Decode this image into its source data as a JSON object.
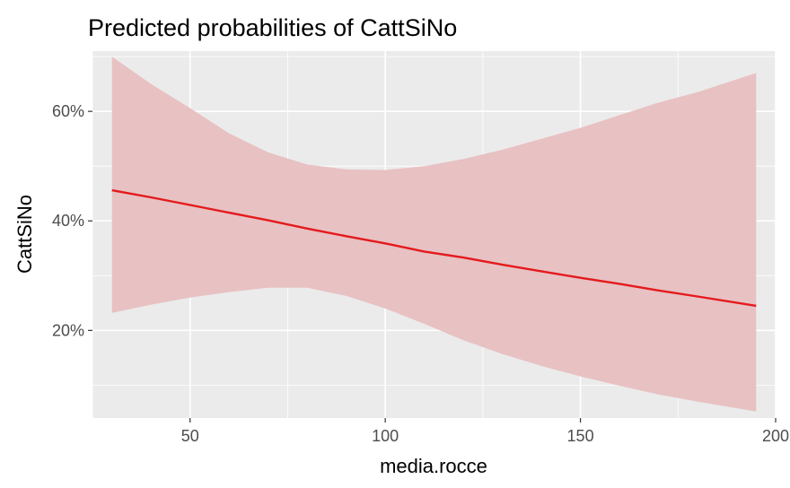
{
  "chart_data": {
    "type": "line",
    "title": "Predicted probabilities of CattSiNo",
    "xlabel": "media.rocce",
    "ylabel": "CattSiNo",
    "xlim": [
      25,
      200
    ],
    "ylim": [
      4,
      71
    ],
    "x_ticks": [
      50,
      100,
      150,
      200
    ],
    "y_ticks": [
      20,
      40,
      60
    ],
    "y_tick_labels": [
      "20%",
      "40%",
      "60%"
    ],
    "x_minor_ticks": [
      25,
      75,
      125,
      175
    ],
    "y_minor_ticks": [
      10,
      30,
      50,
      70
    ],
    "grid": true,
    "legend": "none",
    "series": [
      {
        "x": [
          30,
          40,
          50,
          60,
          70,
          80,
          90,
          100,
          110,
          120,
          130,
          140,
          150,
          160,
          170,
          180,
          195
        ],
        "y": [
          45.6,
          44.3,
          42.9,
          41.5,
          40.1,
          38.6,
          37.2,
          35.9,
          34.4,
          33.3,
          32.0,
          30.8,
          29.6,
          28.5,
          27.3,
          26.2,
          24.5
        ],
        "lower": [
          23.2,
          24.7,
          26.0,
          27.0,
          27.8,
          27.8,
          26.3,
          24.0,
          21.2,
          18.2,
          15.7,
          13.5,
          11.6,
          9.9,
          8.3,
          7.0,
          5.2
        ],
        "upper": [
          70.0,
          65.0,
          60.6,
          56.0,
          52.5,
          50.3,
          49.4,
          49.3,
          50.0,
          51.3,
          53.0,
          55.0,
          57.0,
          59.3,
          61.6,
          63.5,
          67.0
        ]
      }
    ],
    "colors": {
      "line": "#e41a1c",
      "ribbon": "#e8c1c3",
      "panel": "#ebebeb",
      "grid": "#ffffff"
    }
  }
}
